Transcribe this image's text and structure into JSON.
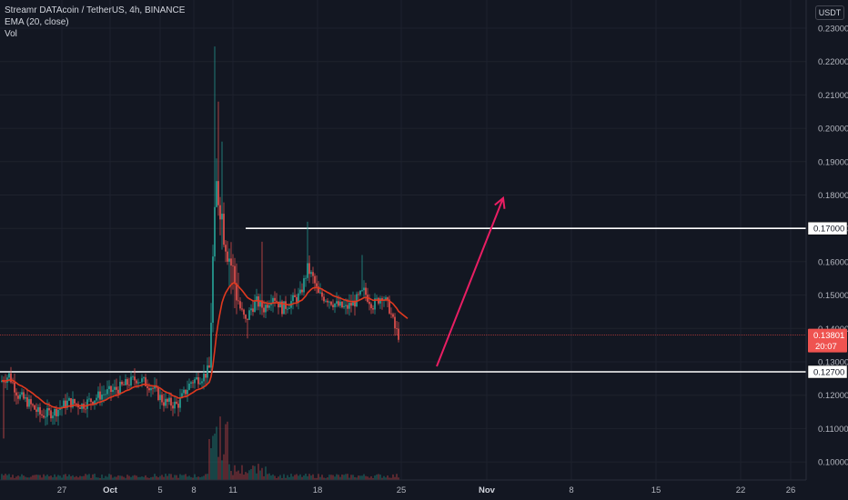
{
  "legend": {
    "symbol_line": "Streamr DATAcoin / TetherUS, 4h, BINANCE",
    "ema_line": "EMA (20, close)",
    "vol_line": "Vol"
  },
  "unit_label": "USDT",
  "colors": {
    "background": "#131722",
    "up": "#26a69a",
    "down": "#ef5350",
    "ema": "#e0391f",
    "arrow": "#e91e63",
    "levels": "#ffffff",
    "price_line": "#c63b3b"
  },
  "chart_data": {
    "type": "candlestick",
    "y_axis": {
      "min": 0.095,
      "max": 0.235,
      "tick_labels": [
        "0.23000",
        "0.22000",
        "0.21000",
        "0.20000",
        "0.19000",
        "0.18000",
        "0.17000",
        "0.16000",
        "0.15000",
        "0.14000",
        "0.13000",
        "0.12000",
        "0.11000",
        "0.10000"
      ],
      "tick_values": [
        0.23,
        0.22,
        0.21,
        0.2,
        0.19,
        0.18,
        0.17,
        0.16,
        0.15,
        0.14,
        0.13,
        0.12,
        0.11,
        0.1
      ]
    },
    "x_axis": {
      "labels": [
        "27",
        "Oct",
        "5",
        "8",
        "11",
        "18",
        "25",
        "Nov",
        "8",
        "15",
        "22",
        "26"
      ]
    },
    "current_price": {
      "label": "0.13801",
      "countdown": "20:07",
      "value": 0.13801
    },
    "horizontal_levels": [
      {
        "label": "0.17000",
        "value": 0.17
      },
      {
        "label": "0.12700",
        "value": 0.127
      }
    ],
    "ema_period": 20,
    "projection_arrow": {
      "from": 0.127,
      "to": 0.178
    }
  }
}
